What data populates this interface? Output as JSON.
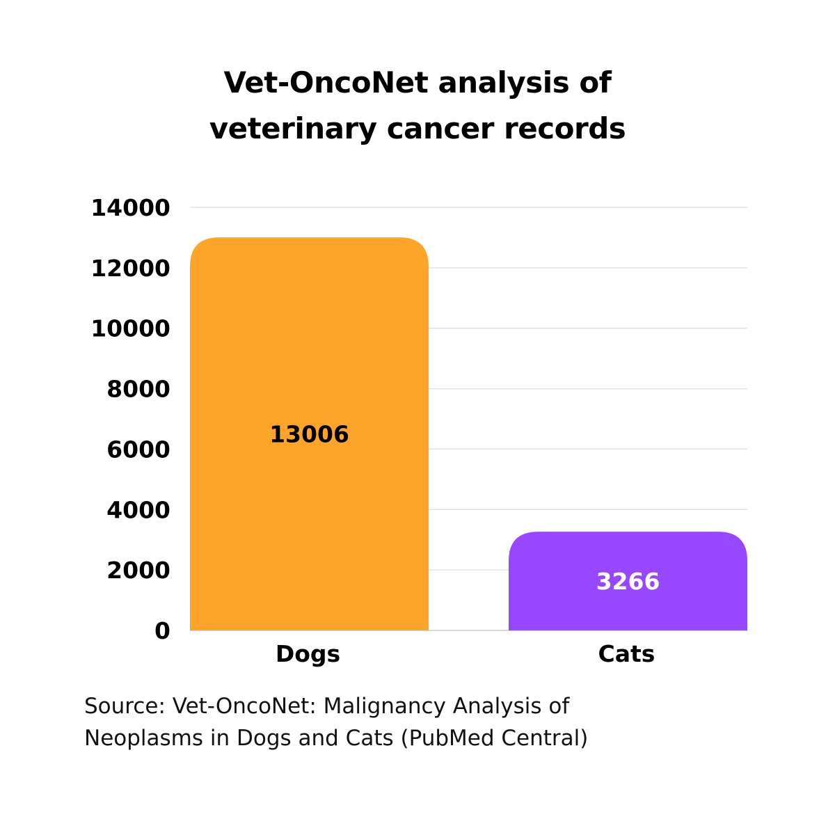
{
  "chart_data": {
    "type": "bar",
    "title_lines": [
      "Vet-OncoNet analysis of",
      "veterinary cancer records"
    ],
    "categories": [
      "Dogs",
      "Cats"
    ],
    "values": [
      13006,
      3266
    ],
    "value_labels": [
      "13006",
      "3266"
    ],
    "colors": [
      "#FCA52A",
      "#9747FF"
    ],
    "value_label_colors": [
      "#000000",
      "#FFFFFF"
    ],
    "ylim": [
      0,
      14000
    ],
    "yticks": [
      0,
      2000,
      4000,
      6000,
      8000,
      10000,
      12000,
      14000
    ],
    "ytick_labels": [
      "0",
      "2000",
      "4000",
      "6000",
      "8000",
      "10000",
      "12000",
      "14000"
    ],
    "grid": true,
    "xlabel": "",
    "ylabel": ""
  },
  "source": {
    "line1": "Source: Vet-OncoNet: Malignancy Analysis of",
    "line2": "Neoplasms in Dogs and Cats (PubMed Central)"
  }
}
